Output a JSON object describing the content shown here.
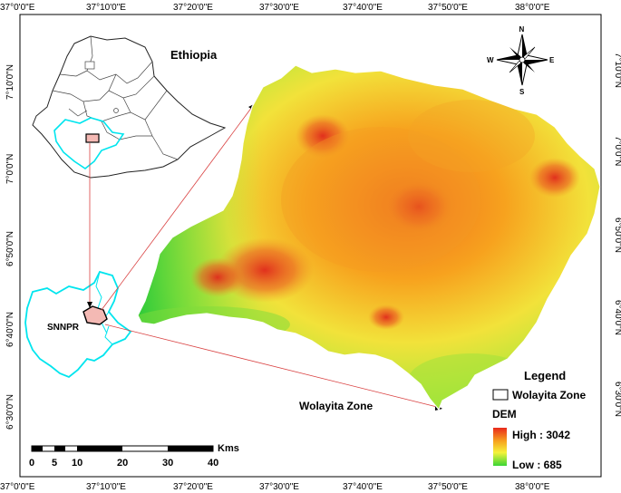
{
  "map": {
    "top_lon_labels": [
      "37°0'0\"E",
      "37°10'0\"E",
      "37°20'0\"E",
      "37°30'0\"E",
      "37°40'0\"E",
      "37°50'0\"E",
      "38°0'0\"E"
    ],
    "bottom_lon_labels": [
      "37°0'0\"E",
      "37°10'0\"E",
      "37°20'0\"E",
      "37°30'0\"E",
      "37°40'0\"E",
      "37°50'0\"E",
      "38°0'0\"E"
    ],
    "left_lat_labels": [
      "7°10'0\"N",
      "7°0'0\"N",
      "6°50'0\"N",
      "6°40'0\"N",
      "6°30'0\"N"
    ],
    "right_lat_labels": [
      "7°10'0\"N",
      "7°0'0\"N",
      "6°50'0\"N",
      "6°40'0\"N",
      "6°30'0\"N"
    ],
    "inset_country_label": "Ethiopia",
    "inset_region_label": "SNNPR",
    "zone_label": "Wolayita Zone"
  },
  "compass": {
    "n": "N",
    "s": "S",
    "e": "E",
    "w": "W"
  },
  "legend": {
    "title": "Legend",
    "boundary_item": "Wolayita Zone",
    "dem_title": "DEM",
    "high_label": "High : 3042",
    "low_label": "Low : 685",
    "colors": {
      "high": "#e8291c",
      "mid_high": "#f7a21e",
      "mid": "#f5f23a",
      "low": "#3ad535"
    }
  },
  "scalebar": {
    "ticks": [
      "0",
      "5",
      "10",
      "20",
      "30",
      "40"
    ],
    "unit": "Kms"
  },
  "colors": {
    "boundary_inset": "#00e5ee",
    "zone_fill_inset": "#f4b9b4",
    "leader_line": "#d94040"
  }
}
